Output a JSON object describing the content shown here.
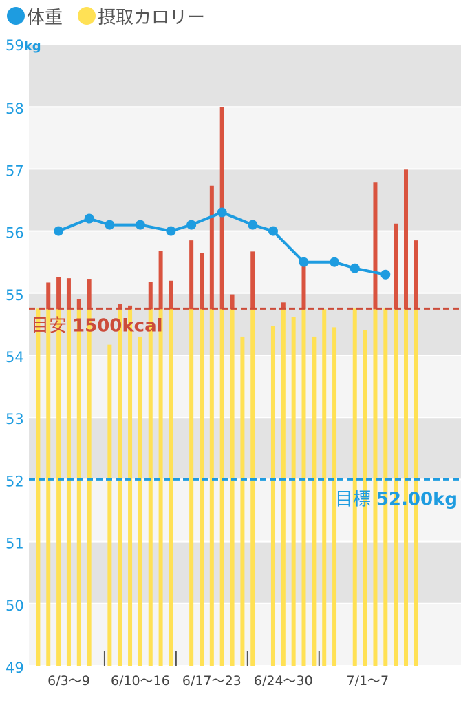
{
  "legend": {
    "weight_label": "体重",
    "calorie_label": "摂取カロリー"
  },
  "colors": {
    "weight": "#1E9CE0",
    "calorie": "#FFE155",
    "calorie_over": "#D9533F",
    "calorie_guide": "#CC4B3A",
    "weight_goal": "#1E9CE0",
    "band_dark": "#E3E3E3",
    "band_light": "#F5F5F5",
    "axis_text": "#1E9CE0",
    "date_text": "#444444"
  },
  "chart_data": {
    "type": "bar+line",
    "y_unit": "kg",
    "ylim": [
      49,
      59
    ],
    "y_ticks": [
      "49",
      "50",
      "51",
      "52",
      "53",
      "54",
      "55",
      "56",
      "57",
      "58",
      "59"
    ],
    "x_range": [
      -1,
      37
    ],
    "week_labels": [
      "6/3～9",
      "6/10～16",
      "6/17～23",
      "6/24～30",
      "7/1～7"
    ],
    "week_dividers": [
      6.5,
      13.5,
      20.5,
      27.5
    ],
    "calorie_bars": [
      {
        "day": 0,
        "top": 54.75
      },
      {
        "day": 1,
        "top": 55.17
      },
      {
        "day": 2,
        "top": 55.26
      },
      {
        "day": 3,
        "top": 55.24
      },
      {
        "day": 4,
        "top": 54.9
      },
      {
        "day": 5,
        "top": 55.23
      },
      {
        "day": 7,
        "top": 54.17
      },
      {
        "day": 8,
        "top": 54.82
      },
      {
        "day": 9,
        "top": 54.8
      },
      {
        "day": 10,
        "top": 54.3
      },
      {
        "day": 11,
        "top": 55.18
      },
      {
        "day": 12,
        "top": 55.68
      },
      {
        "day": 13,
        "top": 55.2
      },
      {
        "day": 15,
        "top": 55.85
      },
      {
        "day": 16,
        "top": 55.65
      },
      {
        "day": 17,
        "top": 56.73
      },
      {
        "day": 18,
        "top": 58.0
      },
      {
        "day": 19,
        "top": 54.98
      },
      {
        "day": 20,
        "top": 54.3
      },
      {
        "day": 21,
        "top": 55.67
      },
      {
        "day": 23,
        "top": 54.47
      },
      {
        "day": 24,
        "top": 54.85
      },
      {
        "day": 25,
        "top": 54.62
      },
      {
        "day": 26,
        "top": 55.45
      },
      {
        "day": 27,
        "top": 54.3
      },
      {
        "day": 28,
        "top": 54.74
      },
      {
        "day": 29,
        "top": 54.45
      },
      {
        "day": 31,
        "top": 54.75
      },
      {
        "day": 32,
        "top": 54.4
      },
      {
        "day": 33,
        "top": 56.78
      },
      {
        "day": 34,
        "top": 54.75
      },
      {
        "day": 35,
        "top": 56.12
      },
      {
        "day": 36,
        "top": 56.99
      },
      {
        "day": 37,
        "top": 55.85
      }
    ],
    "weight_points": [
      {
        "day": 2,
        "value": 56.0
      },
      {
        "day": 5,
        "value": 56.2
      },
      {
        "day": 7,
        "value": 56.1
      },
      {
        "day": 10,
        "value": 56.1
      },
      {
        "day": 13,
        "value": 56.0
      },
      {
        "day": 15,
        "value": 56.1
      },
      {
        "day": 18,
        "value": 56.3
      },
      {
        "day": 21,
        "value": 56.1
      },
      {
        "day": 23,
        "value": 56.0
      },
      {
        "day": 26,
        "value": 55.5
      },
      {
        "day": 29,
        "value": 55.5
      },
      {
        "day": 31,
        "value": 55.4
      },
      {
        "day": 34,
        "value": 55.3
      }
    ],
    "calorie_guide": {
      "level": 54.75,
      "label_prefix": "目安",
      "label_value": "1500kcal"
    },
    "weight_goal": {
      "level": 52.0,
      "label_prefix": "目標",
      "label_value": "52.00kg"
    }
  }
}
